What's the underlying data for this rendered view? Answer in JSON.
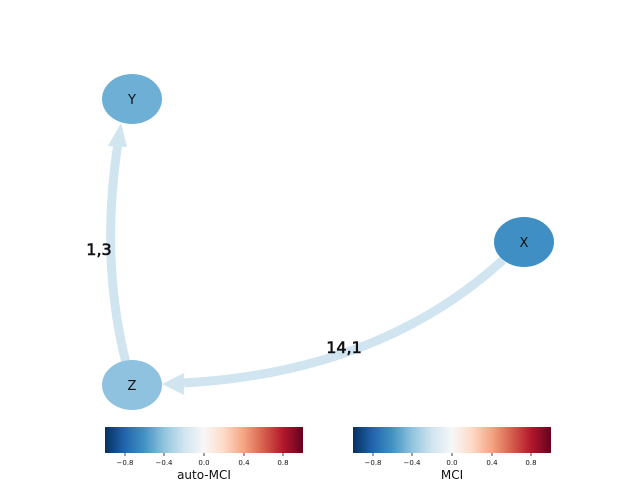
{
  "graph": {
    "nodes": [
      {
        "id": "Y",
        "label": "Y",
        "color": "#6eafd6"
      },
      {
        "id": "X",
        "label": "X",
        "color": "#3f8fc4"
      },
      {
        "id": "Z",
        "label": "Z",
        "color": "#8fc2de"
      }
    ],
    "edges": [
      {
        "from": "Z",
        "to": "Y",
        "label": "1,3",
        "color": "#d1e5f1"
      },
      {
        "from": "X",
        "to": "Z",
        "label": "14,1",
        "color": "#d1e5f1"
      }
    ]
  },
  "colorbars": [
    {
      "title": "auto-MCI",
      "ticks": [
        "−0.8",
        "−0.4",
        "0.0",
        "0.4",
        "0.8"
      ]
    },
    {
      "title": "MCI",
      "ticks": [
        "−0.8",
        "−0.4",
        "0.0",
        "0.4",
        "0.8"
      ]
    }
  ],
  "colormap": {
    "name": "RdBu_r",
    "stops": [
      "#053061",
      "#2166ac",
      "#4393c3",
      "#92c5de",
      "#d1e5f0",
      "#f7f7f7",
      "#fddbc7",
      "#f4a582",
      "#d6604d",
      "#b2182b",
      "#67001f"
    ]
  }
}
